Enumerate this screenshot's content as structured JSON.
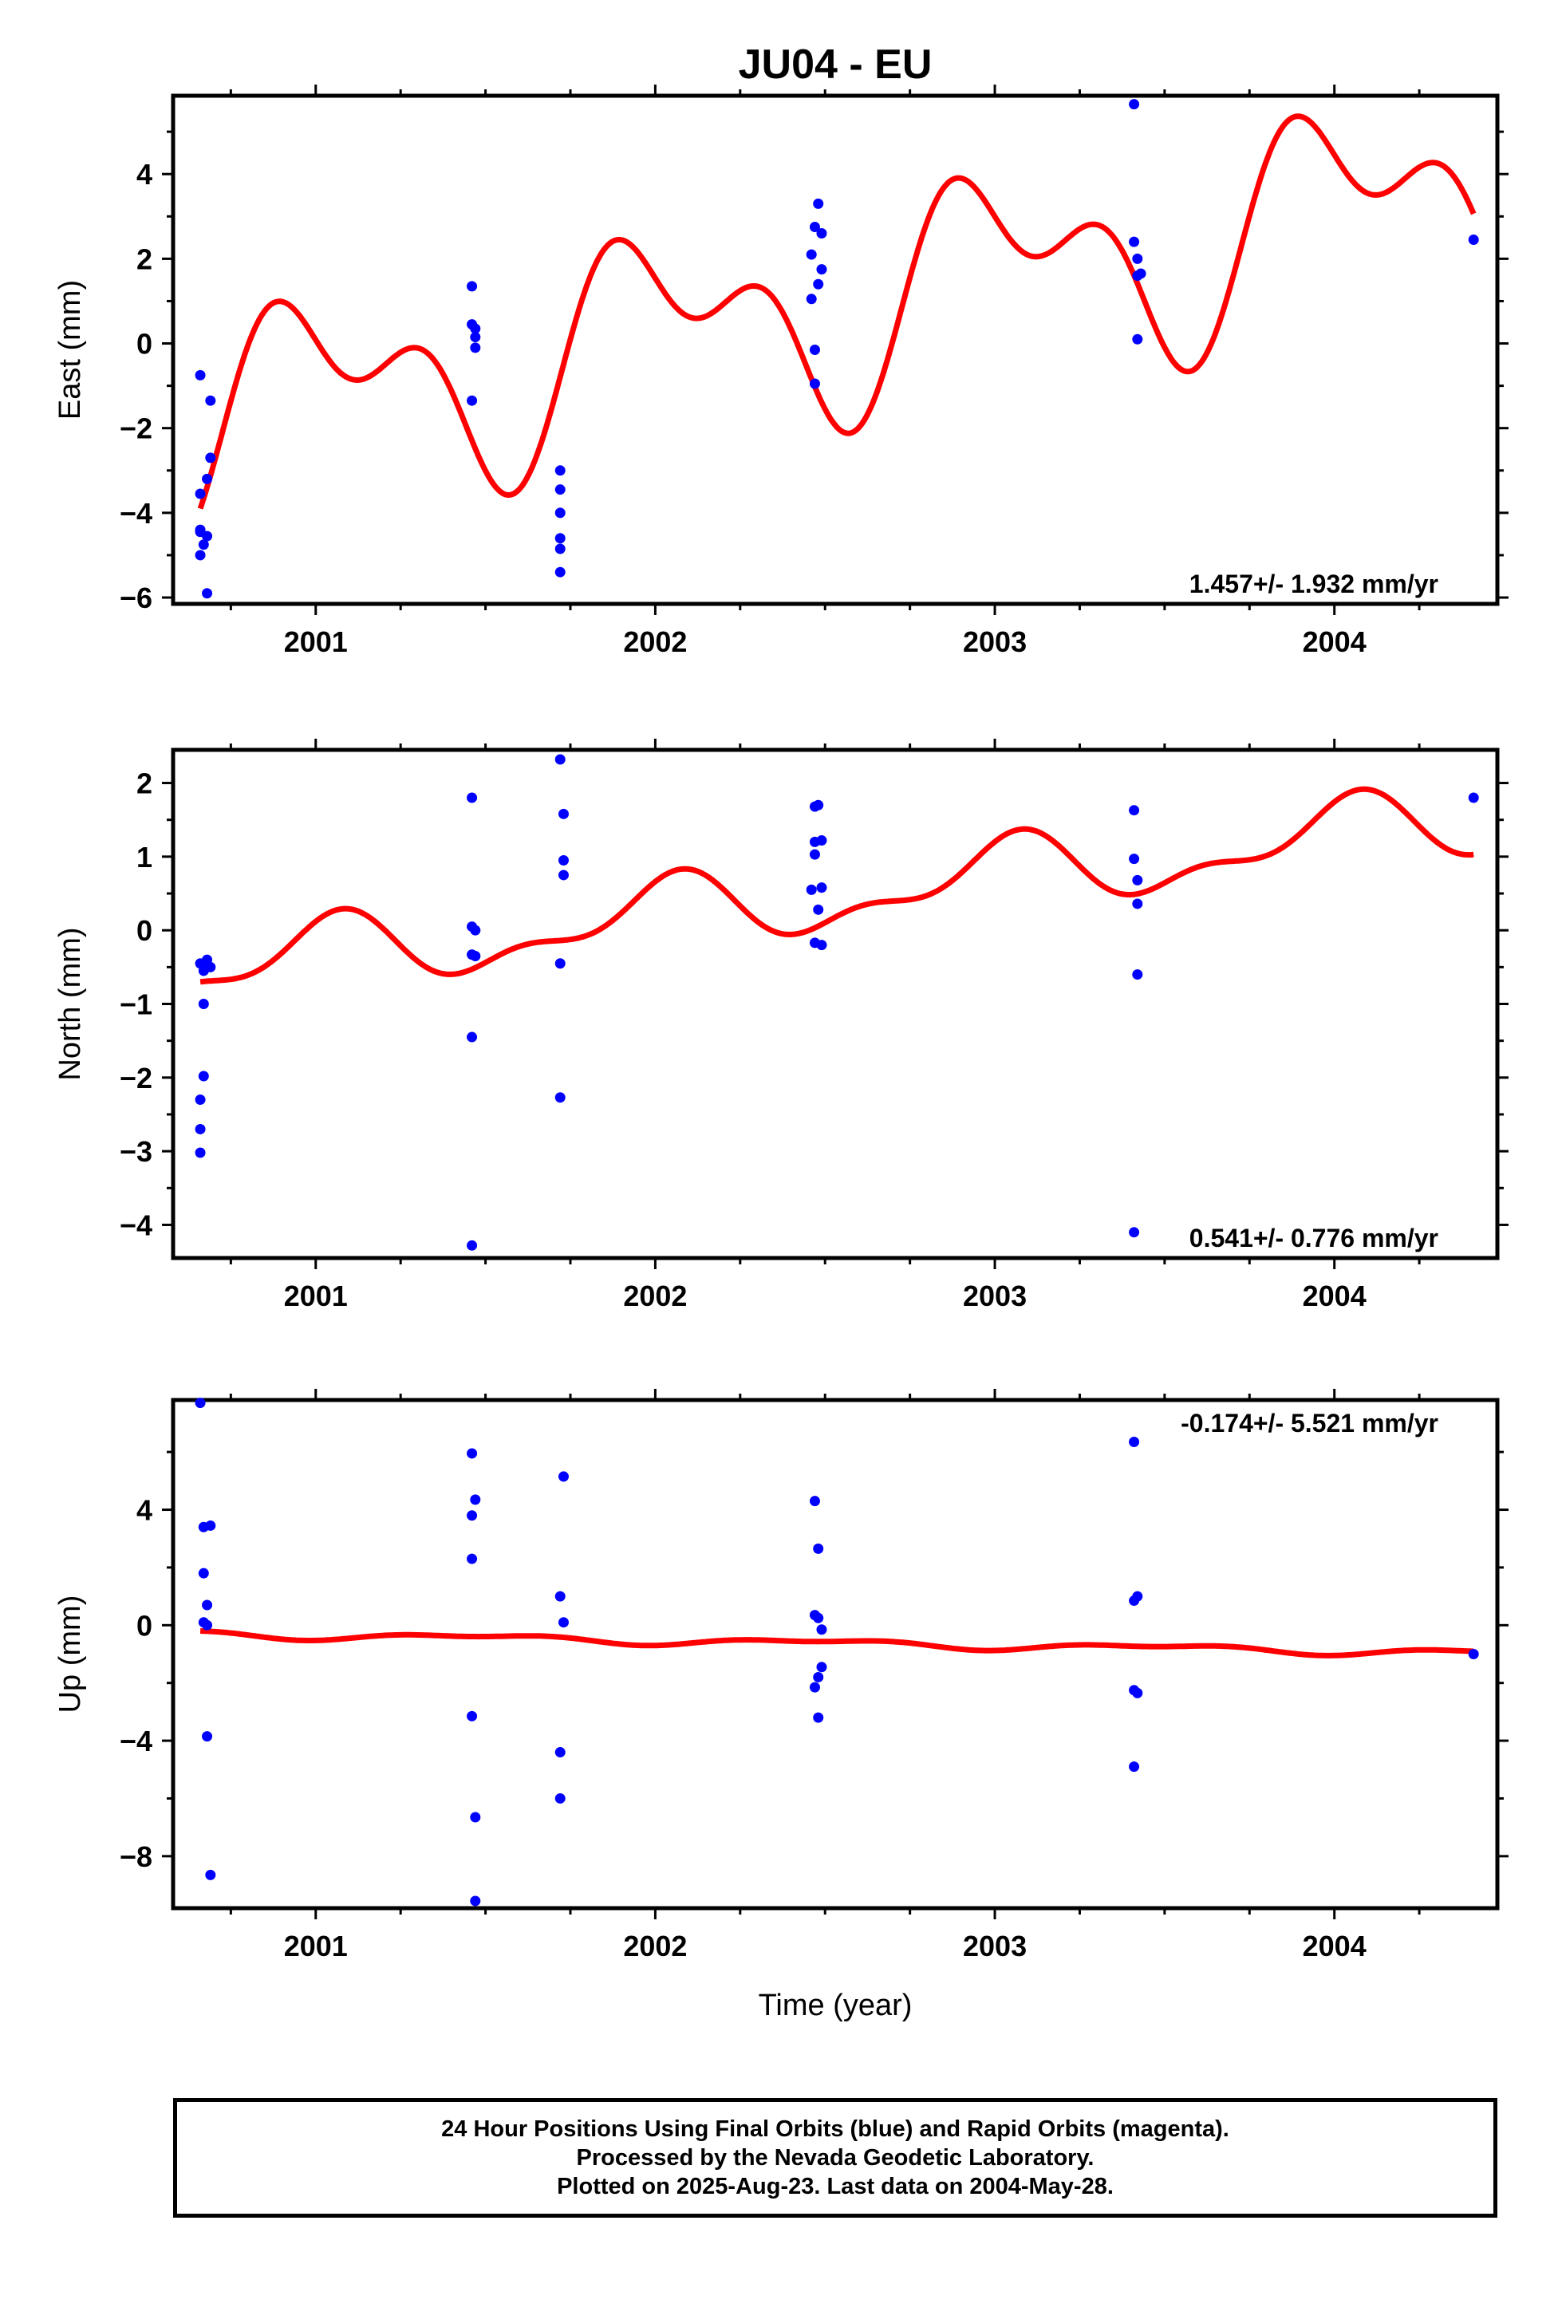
{
  "colors": {
    "points": "#0000ff",
    "fit": "#ff0000",
    "frame": "#000000"
  },
  "chart_data": [
    {
      "type": "scatter",
      "title": "JU04 - EU",
      "ylabel": "East (mm)",
      "xlabel": "",
      "xlim": [
        2000.58,
        2004.48
      ],
      "ylim": [
        -6.15,
        5.85
      ],
      "xticks": [
        2001,
        2002,
        2003,
        2004
      ],
      "yticks": [
        -6,
        -4,
        -2,
        0,
        2,
        4
      ],
      "rate_label": "1.457+/- 1.932 mm/yr",
      "rate_position": "bottom-right",
      "points": [
        [
          2000.66,
          -0.75
        ],
        [
          2000.66,
          -3.55
        ],
        [
          2000.66,
          -4.4
        ],
        [
          2000.66,
          -4.45
        ],
        [
          2000.66,
          -5.0
        ],
        [
          2000.67,
          -4.75
        ],
        [
          2000.68,
          -4.55
        ],
        [
          2000.68,
          -3.2
        ],
        [
          2000.68,
          -5.9
        ],
        [
          2000.69,
          -1.35
        ],
        [
          2000.69,
          -2.7
        ],
        [
          2001.46,
          1.35
        ],
        [
          2001.46,
          0.45
        ],
        [
          2001.47,
          0.35
        ],
        [
          2001.47,
          0.15
        ],
        [
          2001.47,
          -0.1
        ],
        [
          2001.46,
          -1.35
        ],
        [
          2001.72,
          -3.0
        ],
        [
          2001.72,
          -3.45
        ],
        [
          2001.72,
          -4.0
        ],
        [
          2001.72,
          -4.6
        ],
        [
          2001.72,
          -4.85
        ],
        [
          2001.72,
          -5.4
        ],
        [
          2002.46,
          2.1
        ],
        [
          2002.46,
          1.05
        ],
        [
          2002.47,
          2.75
        ],
        [
          2002.47,
          -0.15
        ],
        [
          2002.47,
          -0.95
        ],
        [
          2002.48,
          3.3
        ],
        [
          2002.48,
          1.4
        ],
        [
          2002.49,
          2.6
        ],
        [
          2002.49,
          1.75
        ],
        [
          2003.41,
          5.65
        ],
        [
          2003.41,
          2.4
        ],
        [
          2003.42,
          2.0
        ],
        [
          2003.42,
          1.6
        ],
        [
          2003.43,
          1.65
        ],
        [
          2003.42,
          0.1
        ],
        [
          2004.41,
          2.45
        ]
      ],
      "fit": {
        "x0": 2000.66,
        "x1": 2004.41,
        "offset": -1.8,
        "rate": 1.457,
        "annual_a": -1.2,
        "annual_b": 1.5,
        "semi_a": -0.9,
        "semi_b": 1.0
      }
    },
    {
      "type": "scatter",
      "title": "",
      "ylabel": "North (mm)",
      "xlabel": "",
      "xlim": [
        2000.58,
        2004.48
      ],
      "ylim": [
        -4.45,
        2.45
      ],
      "xticks": [
        2001,
        2002,
        2003,
        2004
      ],
      "yticks": [
        -4,
        -3,
        -2,
        -1,
        0,
        1,
        2
      ],
      "rate_label": "0.541+/- 0.776 mm/yr",
      "rate_position": "bottom-right",
      "points": [
        [
          2000.66,
          -0.45
        ],
        [
          2000.67,
          -0.55
        ],
        [
          2000.68,
          -0.4
        ],
        [
          2000.68,
          -0.5
        ],
        [
          2000.69,
          -0.5
        ],
        [
          2000.67,
          -1.0
        ],
        [
          2000.67,
          -1.98
        ],
        [
          2000.66,
          -2.3
        ],
        [
          2000.66,
          -2.7
        ],
        [
          2000.66,
          -3.02
        ],
        [
          2001.46,
          1.8
        ],
        [
          2001.46,
          0.05
        ],
        [
          2001.47,
          0.0
        ],
        [
          2001.47,
          -0.35
        ],
        [
          2001.46,
          -0.33
        ],
        [
          2001.46,
          -1.45
        ],
        [
          2001.46,
          -4.28
        ],
        [
          2001.72,
          2.32
        ],
        [
          2001.73,
          1.58
        ],
        [
          2001.73,
          0.95
        ],
        [
          2001.73,
          0.75
        ],
        [
          2001.72,
          -0.45
        ],
        [
          2001.72,
          -2.27
        ],
        [
          2002.47,
          1.68
        ],
        [
          2002.48,
          1.7
        ],
        [
          2002.47,
          1.2
        ],
        [
          2002.49,
          1.22
        ],
        [
          2002.47,
          1.03
        ],
        [
          2002.46,
          0.55
        ],
        [
          2002.49,
          0.58
        ],
        [
          2002.48,
          0.28
        ],
        [
          2002.47,
          -0.17
        ],
        [
          2002.49,
          -0.2
        ],
        [
          2003.41,
          1.63
        ],
        [
          2003.41,
          0.97
        ],
        [
          2003.42,
          0.68
        ],
        [
          2003.42,
          0.36
        ],
        [
          2003.42,
          -0.6
        ],
        [
          2003.41,
          -4.1
        ],
        [
          2004.41,
          1.8
        ]
      ],
      "fit": {
        "x0": 2000.66,
        "x1": 2004.41,
        "offset": -0.55,
        "rate": 0.541,
        "annual_a": -0.3,
        "annual_b": 0.3,
        "semi_a": 0.15,
        "semi_b": -0.15
      }
    },
    {
      "type": "scatter",
      "title": "",
      "ylabel": "Up (mm)",
      "xlabel": "Time (year)",
      "xlim": [
        2000.58,
        2004.48
      ],
      "ylim": [
        -9.8,
        7.8
      ],
      "xticks": [
        2001,
        2002,
        2003,
        2004
      ],
      "yticks": [
        -8,
        -4,
        0,
        4
      ],
      "rate_label": "-0.174+/- 5.521 mm/yr",
      "rate_position": "top-right",
      "points": [
        [
          2000.66,
          7.7
        ],
        [
          2000.67,
          3.4
        ],
        [
          2000.69,
          3.45
        ],
        [
          2000.67,
          1.8
        ],
        [
          2000.68,
          0.7
        ],
        [
          2000.67,
          0.1
        ],
        [
          2000.68,
          0.0
        ],
        [
          2000.68,
          -3.85
        ],
        [
          2000.69,
          -8.65
        ],
        [
          2001.46,
          5.95
        ],
        [
          2001.47,
          4.35
        ],
        [
          2001.46,
          3.8
        ],
        [
          2001.46,
          2.3
        ],
        [
          2001.46,
          -3.15
        ],
        [
          2001.47,
          -6.65
        ],
        [
          2001.47,
          -9.55
        ],
        [
          2001.73,
          5.15
        ],
        [
          2001.72,
          1.0
        ],
        [
          2001.73,
          0.1
        ],
        [
          2001.72,
          -4.4
        ],
        [
          2001.72,
          -6.0
        ],
        [
          2002.47,
          4.3
        ],
        [
          2002.48,
          2.65
        ],
        [
          2002.47,
          0.35
        ],
        [
          2002.48,
          0.25
        ],
        [
          2002.49,
          -0.15
        ],
        [
          2002.49,
          -1.45
        ],
        [
          2002.48,
          -1.8
        ],
        [
          2002.47,
          -2.15
        ],
        [
          2002.48,
          -3.2
        ],
        [
          2003.41,
          6.35
        ],
        [
          2003.42,
          1.0
        ],
        [
          2003.41,
          0.85
        ],
        [
          2003.41,
          -2.25
        ],
        [
          2003.42,
          -2.35
        ],
        [
          2003.41,
          -4.9
        ],
        [
          2004.41,
          -1.0
        ]
      ],
      "fit": {
        "x0": 2000.66,
        "x1": 2004.41,
        "offset": -0.3,
        "rate": -0.174,
        "annual_a": 0.05,
        "annual_b": -0.1,
        "semi_a": 0.05,
        "semi_b": 0.04
      }
    }
  ],
  "footer": {
    "line1": "24 Hour Positions Using Final Orbits (blue) and Rapid Orbits (magenta).",
    "line2": "Processed by the Nevada Geodetic Laboratory.",
    "line3": "Plotted on 2025-Aug-23. Last data on 2004-May-28."
  }
}
